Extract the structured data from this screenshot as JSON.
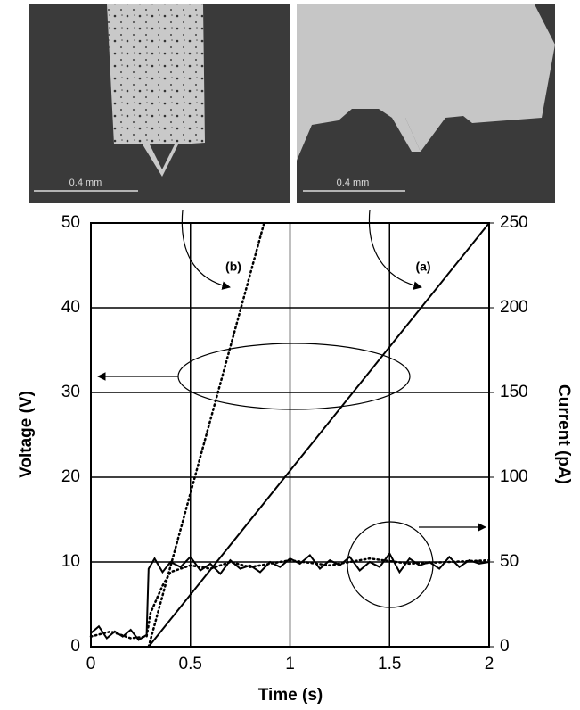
{
  "photos": [
    {
      "scale_label": "0.4 mm"
    },
    {
      "scale_label": "0.4 mm"
    }
  ],
  "chart_data": {
    "type": "line",
    "x_label": "Time (s)",
    "y_label": "Voltage (V)",
    "y2_label": "Current (pA)",
    "annotations": [
      "(a)",
      "(b)"
    ],
    "xlim": [
      0,
      2
    ],
    "xticks": [
      0,
      0.5,
      1,
      1.5,
      2
    ],
    "ylim": [
      0,
      50
    ],
    "yticks": [
      0,
      10,
      20,
      30,
      40,
      50
    ],
    "y2lim": [
      0,
      250
    ],
    "y2ticks": [
      0,
      50,
      100,
      150,
      200,
      250
    ],
    "grid": true,
    "series": [
      {
        "color": "#000000",
        "style": "solid",
        "axis": "y",
        "x": [
          0.29,
          2
        ],
        "values": [
          0,
          50
        ]
      },
      {
        "color": "#000000",
        "style": "dotted",
        "axis": "y",
        "x": [
          0.29,
          0.87
        ],
        "values": [
          0,
          50
        ]
      },
      {
        "color": "#000000",
        "style": "solid",
        "axis": "y2",
        "x": [
          0,
          0.04,
          0.08,
          0.12,
          0.16,
          0.2,
          0.24,
          0.28,
          0.29,
          0.32,
          0.36,
          0.4,
          0.45,
          0.5,
          0.55,
          0.6,
          0.65,
          0.7,
          0.75,
          0.8,
          0.85,
          0.9,
          0.95,
          1.0,
          1.05,
          1.1,
          1.15,
          1.2,
          1.25,
          1.3,
          1.35,
          1.4,
          1.45,
          1.5,
          1.55,
          1.6,
          1.65,
          1.7,
          1.75,
          1.8,
          1.85,
          1.9,
          1.95,
          2.0
        ],
        "values": [
          8,
          12,
          5,
          9,
          6,
          10,
          4,
          7,
          46,
          52,
          44,
          50,
          47,
          53,
          45,
          49,
          43,
          51,
          46,
          48,
          44,
          50,
          47,
          52,
          49,
          54,
          46,
          51,
          48,
          53,
          45,
          50,
          47,
          55,
          44,
          52,
          48,
          50,
          46,
          53,
          47,
          51,
          49,
          50
        ]
      },
      {
        "color": "#000000",
        "style": "dotted",
        "axis": "y2",
        "x": [
          0,
          0.1,
          0.2,
          0.28,
          0.3,
          0.33,
          0.36,
          0.4,
          0.5,
          0.6,
          0.7,
          0.8,
          0.9,
          1.0,
          1.2,
          1.4,
          1.6,
          1.8,
          2.0
        ],
        "values": [
          6,
          9,
          5,
          6,
          20,
          28,
          36,
          44,
          48,
          46,
          50,
          47,
          49,
          51,
          48,
          52,
          49,
          50,
          51
        ]
      }
    ]
  }
}
